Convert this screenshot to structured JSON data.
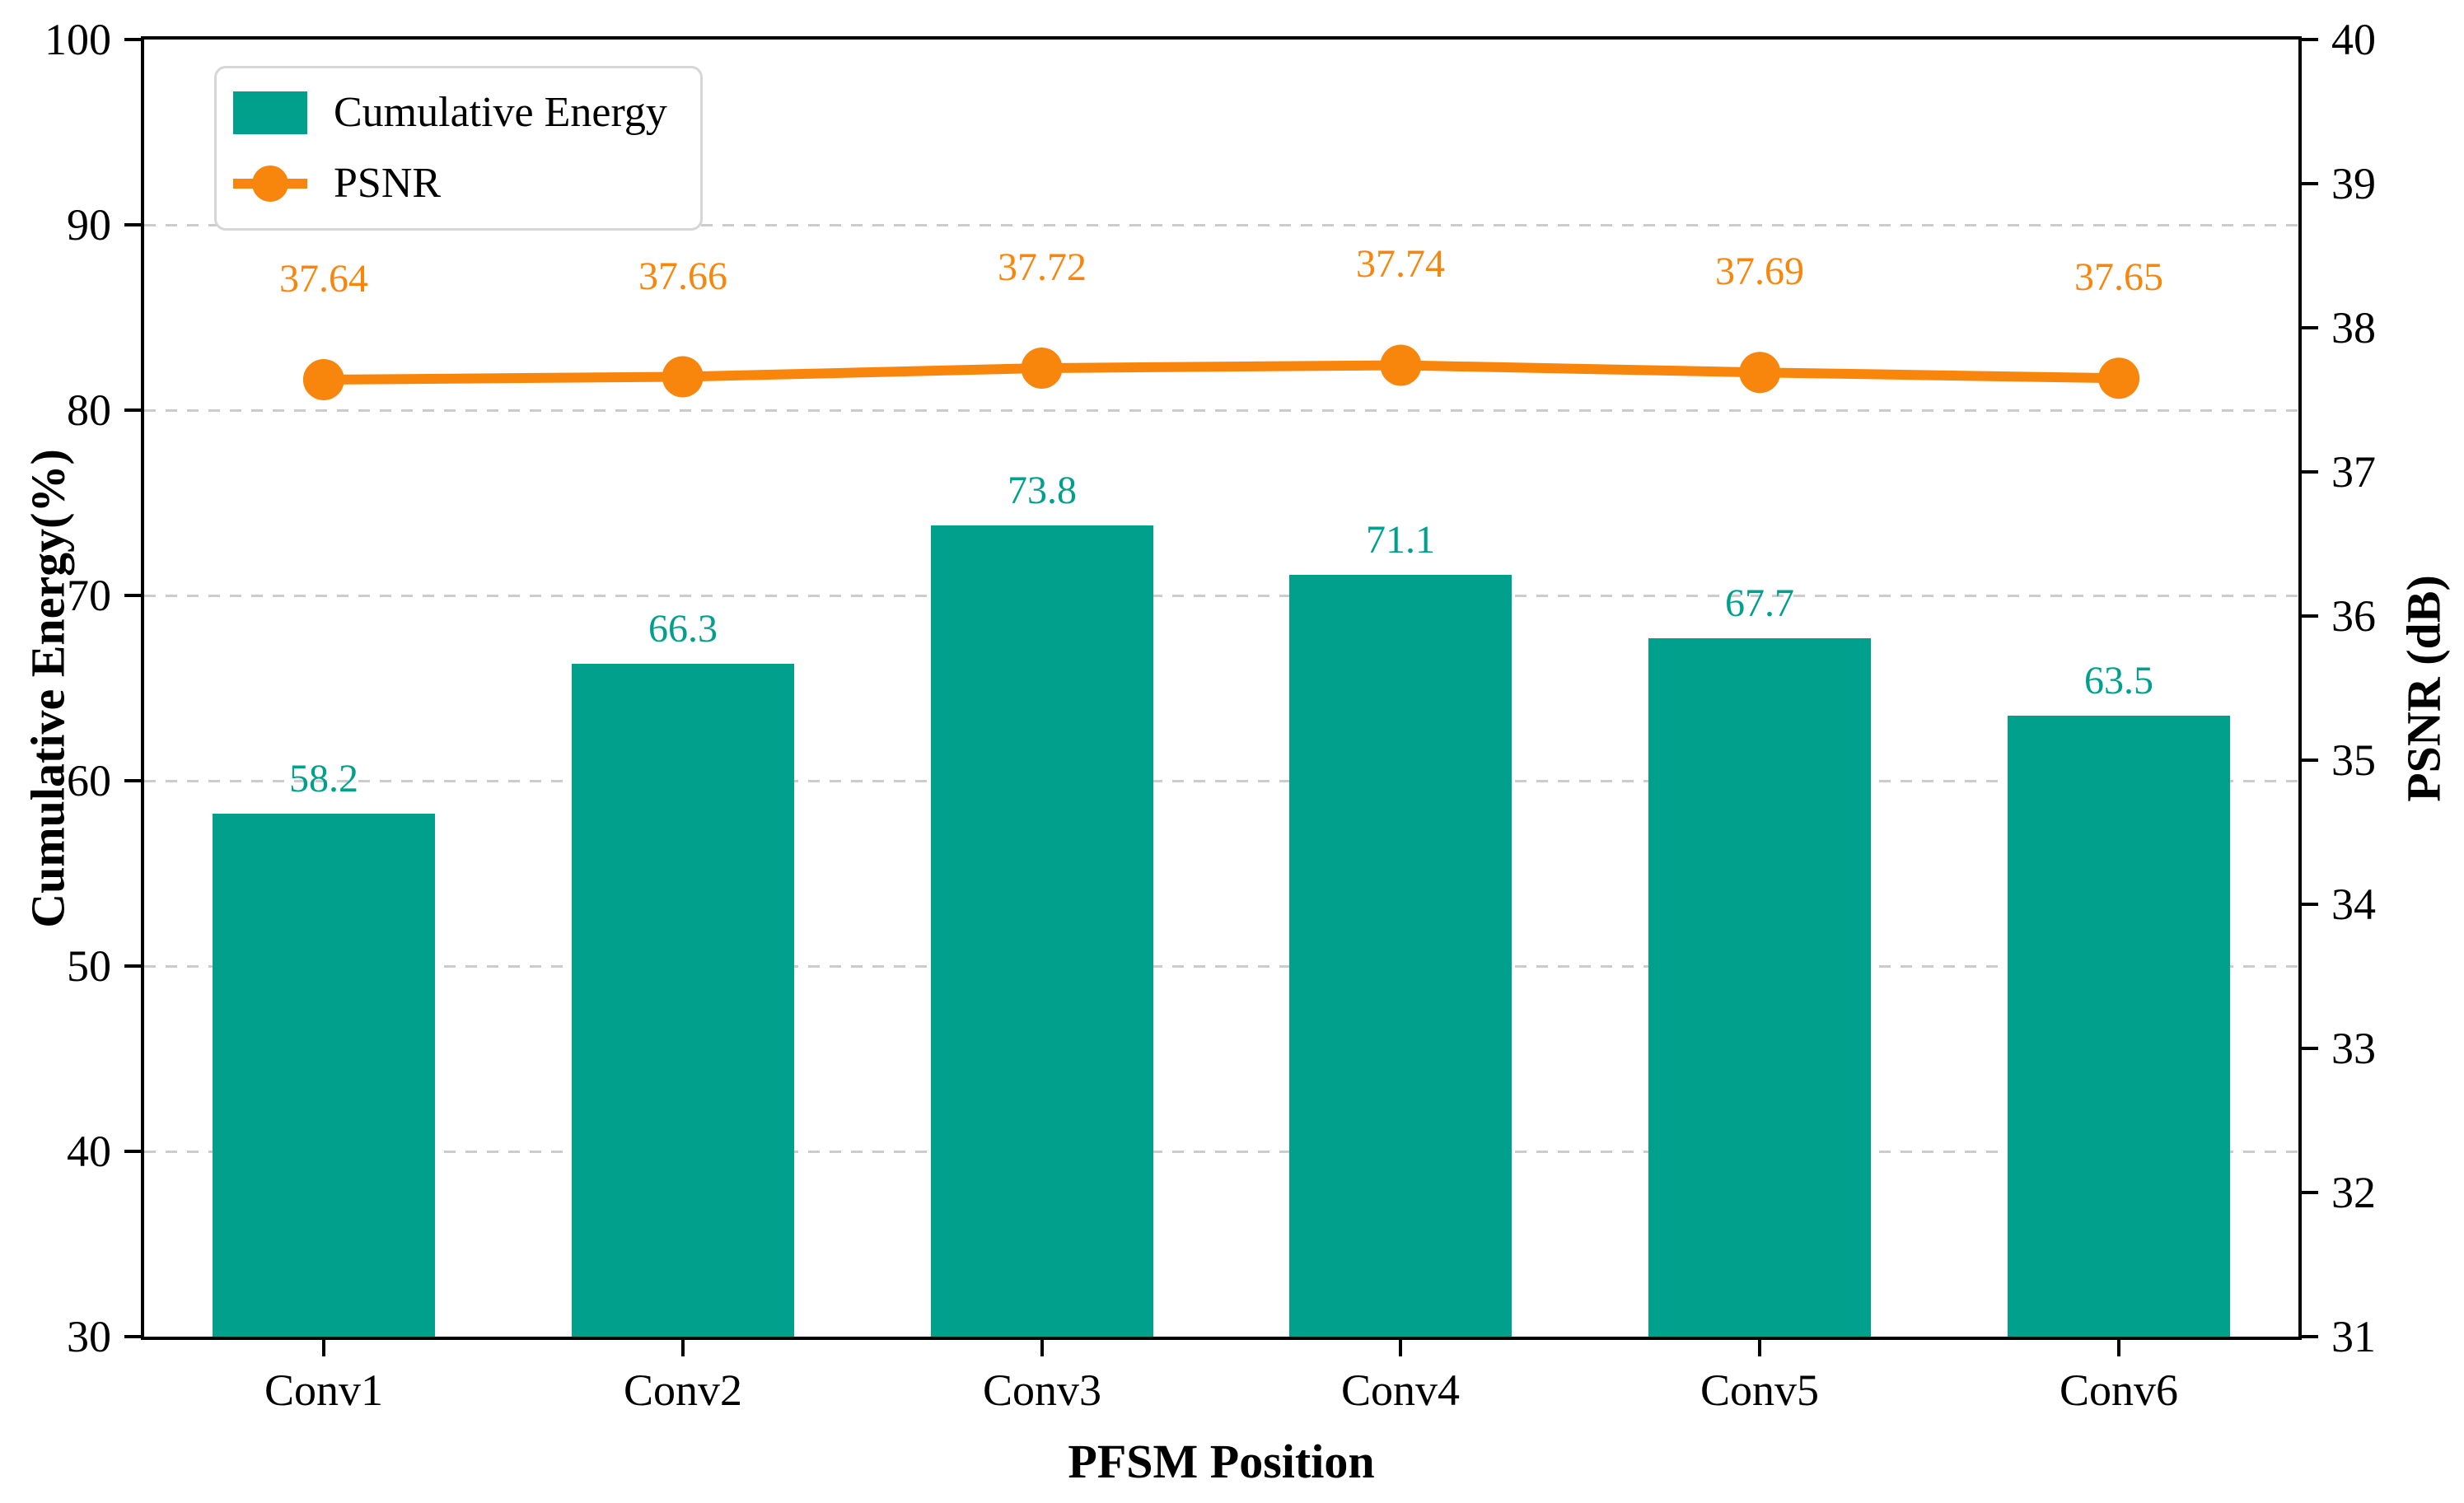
{
  "chart_data": {
    "type": "bar+line",
    "title": "",
    "categories": [
      "Conv1",
      "Conv2",
      "Conv3",
      "Conv4",
      "Conv5",
      "Conv6"
    ],
    "series": [
      {
        "name": "Cumulative Energy",
        "type": "bar",
        "axis": "left",
        "values": [
          58.2,
          66.3,
          73.8,
          71.1,
          67.7,
          63.5
        ],
        "labels": [
          "58.2",
          "66.3",
          "73.8",
          "71.1",
          "67.7",
          "63.5"
        ],
        "color": "#00A08C"
      },
      {
        "name": "PSNR",
        "type": "line",
        "axis": "right",
        "values": [
          37.64,
          37.66,
          37.72,
          37.74,
          37.69,
          37.65
        ],
        "labels": [
          "37.64",
          "37.66",
          "37.72",
          "37.74",
          "37.69",
          "37.65"
        ],
        "color": "#F8860D"
      }
    ],
    "xlabel": "PFSM Position",
    "left_axis": {
      "label": "Cumulative Energy(%)",
      "min": 30,
      "max": 100,
      "ticks": [
        30,
        40,
        50,
        60,
        70,
        80,
        90,
        100
      ]
    },
    "right_axis": {
      "label": "PSNR (dB)",
      "min": 31,
      "max": 40,
      "ticks": [
        31,
        32,
        33,
        34,
        35,
        36,
        37,
        38,
        39,
        40
      ]
    },
    "grid": {
      "on": true,
      "axis": "left-y",
      "style": "dashed",
      "color": "#cccccc"
    },
    "legend": {
      "position": "upper-left",
      "entries": [
        "Cumulative Energy",
        "PSNR"
      ]
    }
  },
  "colors": {
    "bar": "#00A08C",
    "line": "#F8860D",
    "grid": "#cccccc",
    "legend_border": "#d6d6d6",
    "axis": "#000000",
    "background": "#ffffff"
  }
}
